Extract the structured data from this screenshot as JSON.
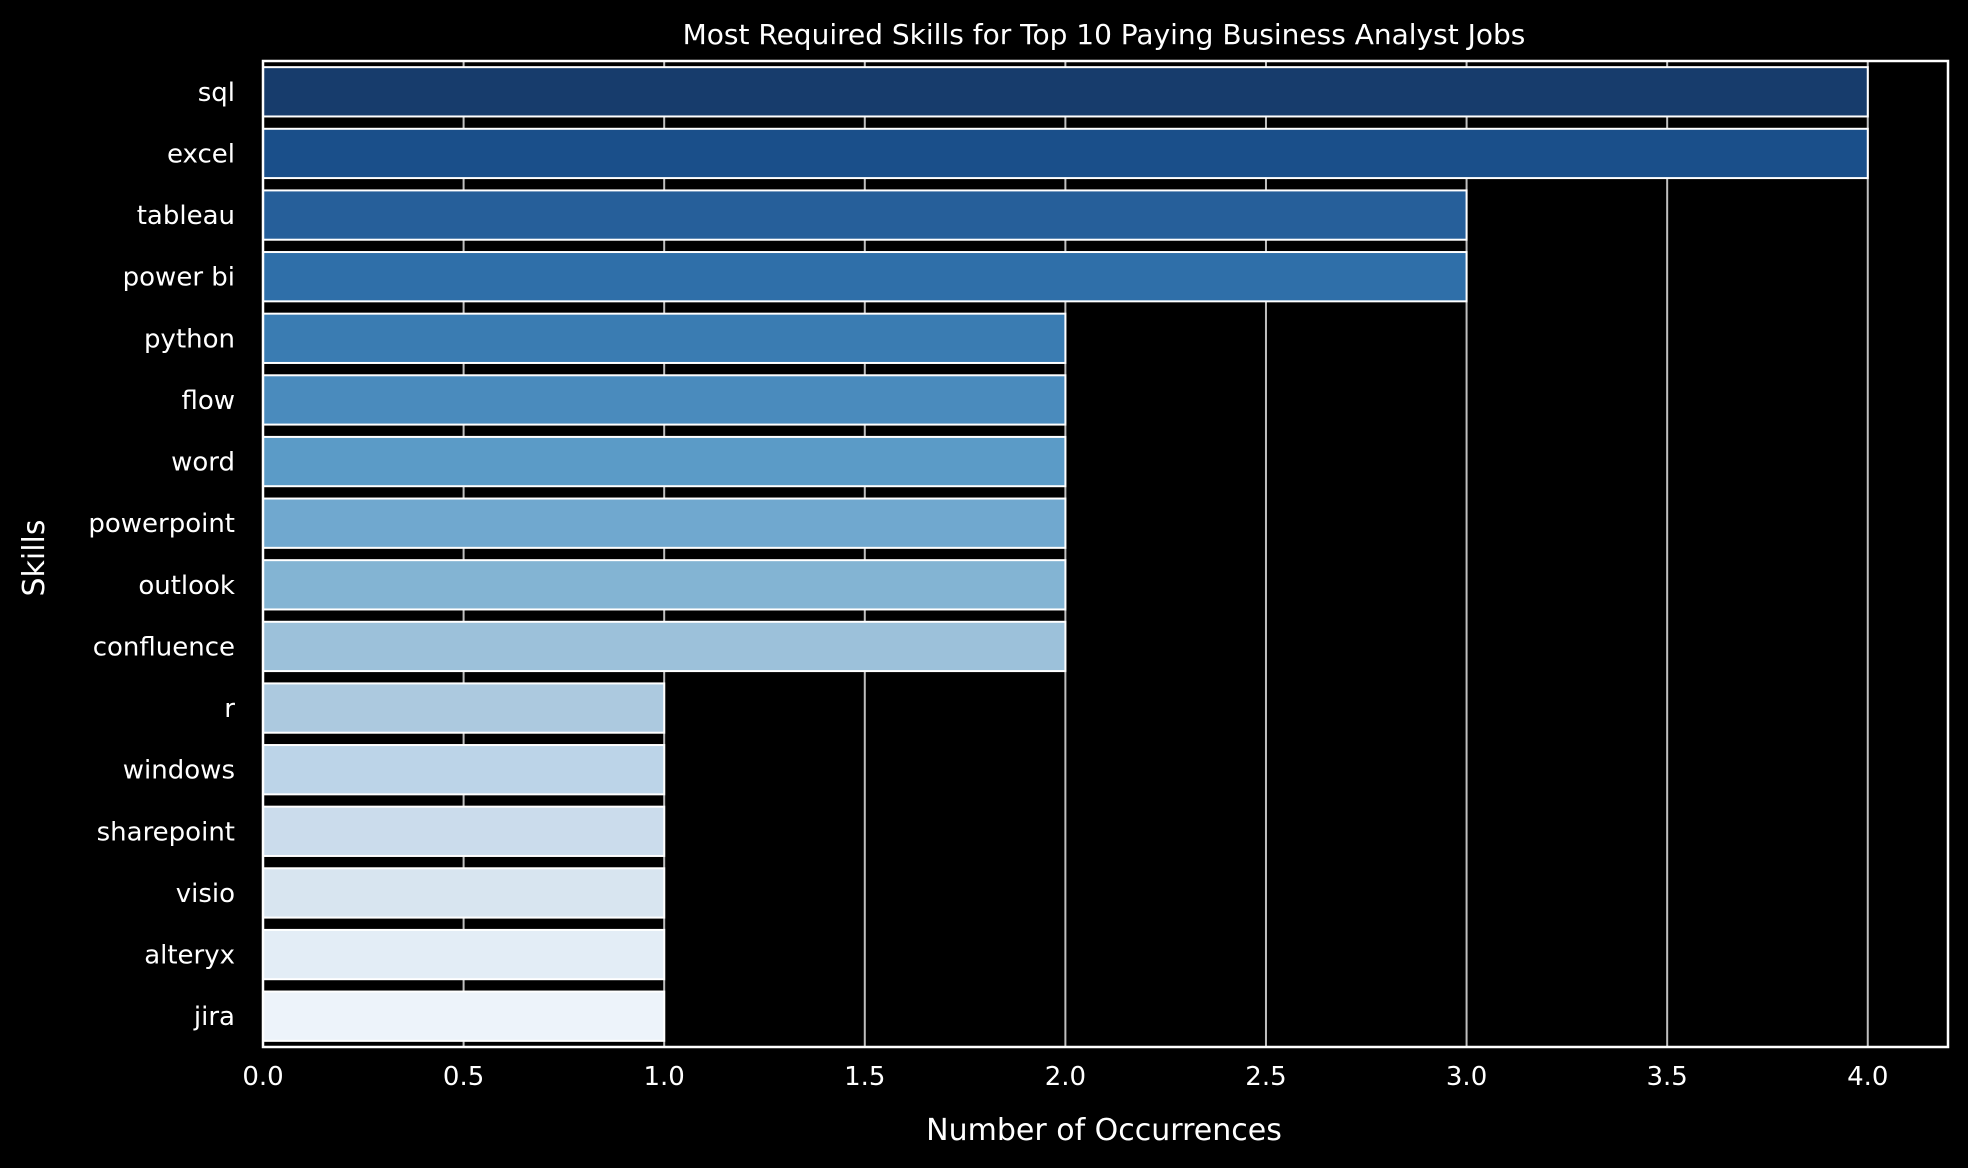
{
  "chart_data": {
    "type": "bar",
    "orientation": "horizontal",
    "title": "Most Required Skills for Top 10 Paying Business Analyst Jobs",
    "xlabel": "Number of Occurrences",
    "ylabel": "Skills",
    "xlim": [
      0,
      4.2
    ],
    "xticks": [
      "0.0",
      "0.5",
      "1.0",
      "1.5",
      "2.0",
      "2.5",
      "3.0",
      "3.5",
      "4.0"
    ],
    "grid": "vertical",
    "categories": [
      "sql",
      "excel",
      "tableau",
      "power bi",
      "python",
      "flow",
      "word",
      "powerpoint",
      "outlook",
      "confluence",
      "r",
      "windows",
      "sharepoint",
      "visio",
      "alteryx",
      "jira"
    ],
    "values": [
      4,
      4,
      3,
      3,
      2,
      2,
      2,
      2,
      2,
      2,
      1,
      1,
      1,
      1,
      1,
      1
    ],
    "colors": [
      "#173c6c",
      "#1a4f8a",
      "#265f9a",
      "#2f6fa9",
      "#3a7cb2",
      "#4a8bbd",
      "#5b9bc7",
      "#70a8cf",
      "#83b4d3",
      "#9cc1da",
      "#acc9df",
      "#bcd4e8",
      "#cbdcec",
      "#d8e5f0",
      "#e3edf6",
      "#edf3fa"
    ],
    "background": "#000000",
    "foreground": "#ffffff",
    "grid_color": "#bfbfbf"
  }
}
